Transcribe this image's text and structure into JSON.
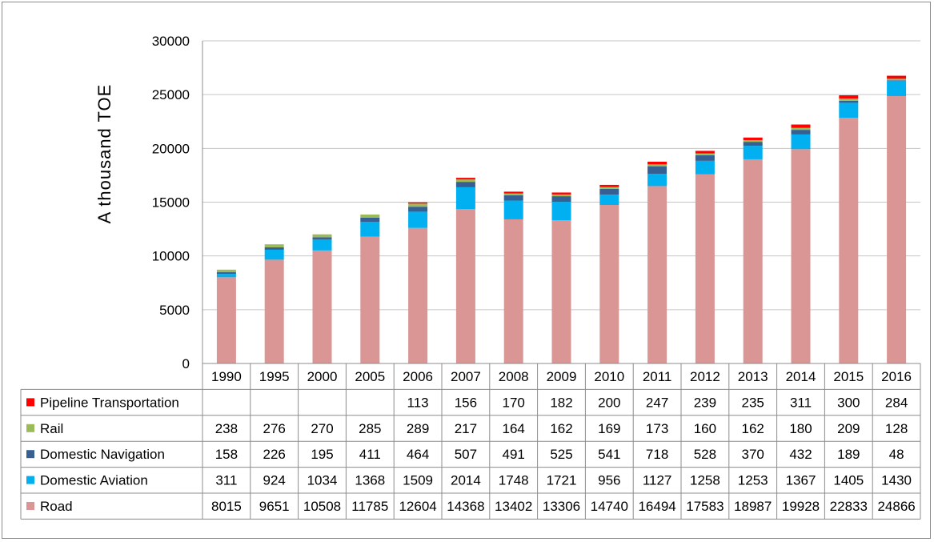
{
  "chart_data": {
    "type": "bar",
    "stacked": true,
    "ylabel": "A  thousand  TOE",
    "ylim": [
      0,
      30000
    ],
    "yticks": [
      "0",
      "5000",
      "10000",
      "15000",
      "20000",
      "25000",
      "30000"
    ],
    "grid": true,
    "legend": "data-table",
    "categories": [
      "1990",
      "1995",
      "2000",
      "2005",
      "2006",
      "2007",
      "2008",
      "2009",
      "2010",
      "2011",
      "2012",
      "2013",
      "2014",
      "2015",
      "2016"
    ],
    "series": [
      {
        "name": "Road",
        "color": "#d99694",
        "values": [
          8015,
          9651,
          10508,
          11785,
          12604,
          14368,
          13402,
          13306,
          14740,
          16494,
          17583,
          18987,
          19928,
          22833,
          24866
        ]
      },
      {
        "name": "Domestic Aviation",
        "color": "#00b0f0",
        "values": [
          311,
          924,
          1034,
          1368,
          1509,
          2014,
          1748,
          1721,
          956,
          1127,
          1258,
          1253,
          1367,
          1405,
          1430
        ]
      },
      {
        "name": "Domestic Navigation",
        "color": "#366092",
        "values": [
          158,
          226,
          195,
          411,
          464,
          507,
          491,
          525,
          541,
          718,
          528,
          370,
          432,
          189,
          48
        ]
      },
      {
        "name": "Rail",
        "color": "#9bbb59",
        "values": [
          238,
          276,
          270,
          285,
          289,
          217,
          164,
          162,
          169,
          173,
          160,
          162,
          180,
          209,
          128
        ]
      },
      {
        "name": "Pipeline Transportation",
        "color": "#ff0000",
        "values": [
          null,
          null,
          null,
          null,
          113,
          156,
          170,
          182,
          200,
          247,
          239,
          235,
          311,
          300,
          284
        ]
      }
    ]
  }
}
